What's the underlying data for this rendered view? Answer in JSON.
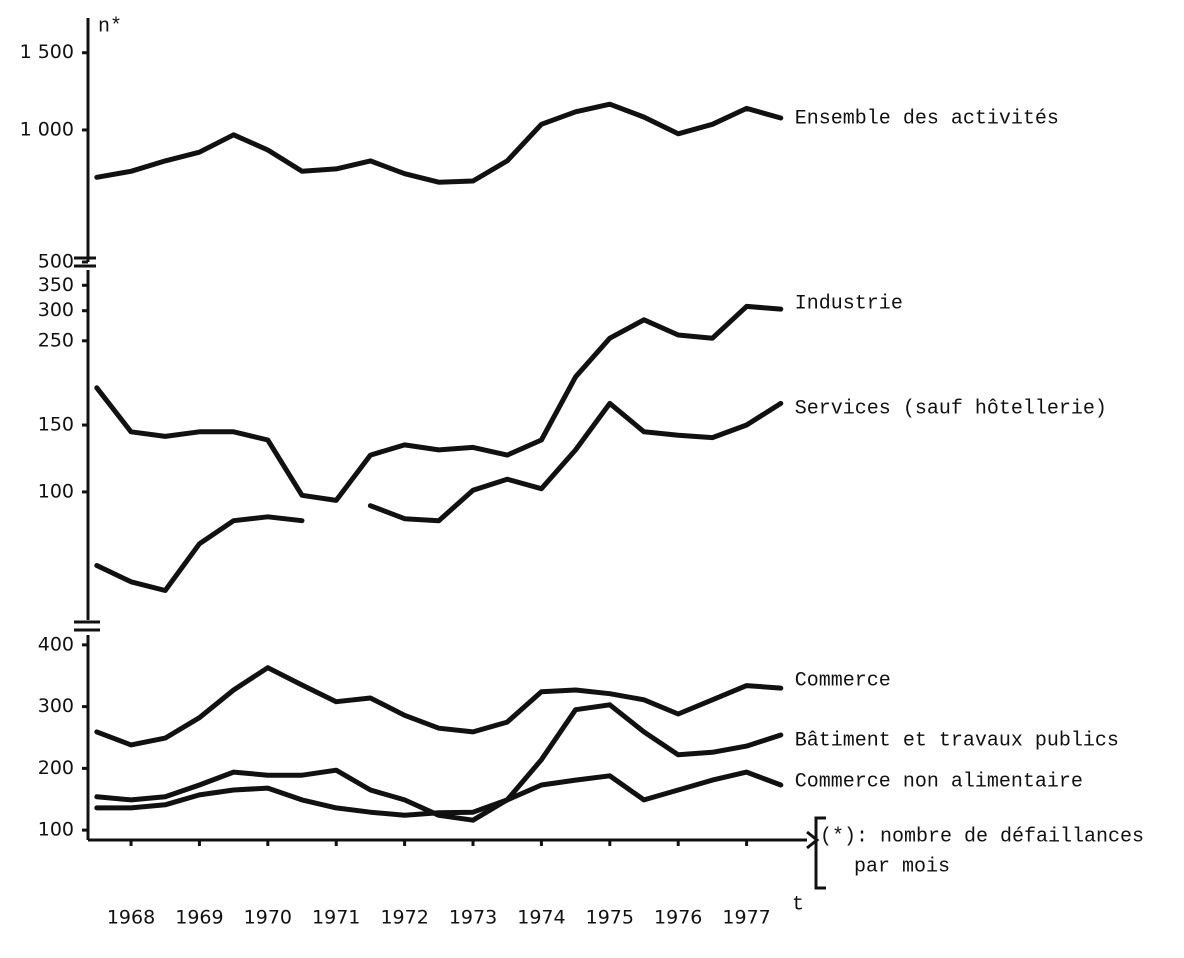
{
  "chart_data": [
    {
      "type": "line",
      "ylabel": "n*",
      "log_scale": true,
      "x": [
        1967.5,
        1968,
        1968.5,
        1969,
        1969.5,
        1970,
        1970.5,
        1971,
        1971.5,
        1972,
        1972.5,
        1973,
        1973.5,
        1974,
        1974.5,
        1975,
        1975.5,
        1976,
        1976.5,
        1977,
        1977.5
      ],
      "xlim": [
        1967.4,
        1978.0
      ],
      "ylim": [
        500,
        1800
      ],
      "yticks": [
        500,
        {
          "value": 1000,
          "label": "1 000"
        },
        {
          "value": 1500,
          "label": "1 500"
        }
      ],
      "series": [
        {
          "name": "Ensemble des activités",
          "color": "#111111",
          "values": [
            780,
            805,
            850,
            890,
            975,
            900,
            805,
            815,
            850,
            795,
            760,
            765,
            850,
            1030,
            1100,
            1145,
            1070,
            980,
            1030,
            1120,
            1065
          ]
        }
      ]
    },
    {
      "type": "line",
      "log_scale": true,
      "x": [
        1967.5,
        1968,
        1968.5,
        1969,
        1969.5,
        1970,
        1970.5,
        1971,
        1971.5,
        1972,
        1972.5,
        1973,
        1973.5,
        1974,
        1974.5,
        1975,
        1975.5,
        1976,
        1976.5,
        1977,
        1977.5
      ],
      "xlim": [
        1967.4,
        1978.0
      ],
      "ylim": [
        46,
        384
      ],
      "yticks": [
        100,
        150,
        250,
        300,
        350
      ],
      "series": [
        {
          "name": "Industrie",
          "color": "#111111",
          "values": [
            188,
            144,
            140,
            144,
            144,
            137,
            98,
            95,
            125,
            133,
            129,
            131,
            125,
            137,
            201,
            254,
            284,
            259,
            254,
            308,
            303
          ]
        },
        {
          "name": "Services (sauf hôtellerie)",
          "color": "#111111",
          "values": [
            64,
            58,
            55,
            73,
            84,
            86,
            84,
            null,
            92,
            85,
            84,
            101,
            108,
            102,
            129,
            171,
            144,
            141,
            139,
            150,
            171
          ]
        }
      ]
    },
    {
      "type": "line",
      "xlabel": "t",
      "annotations": [
        "(*): nombre de défaillances",
        "par mois"
      ],
      "x": [
        1967.5,
        1968,
        1968.5,
        1969,
        1969.5,
        1970,
        1970.5,
        1971,
        1971.5,
        1972,
        1972.5,
        1973,
        1973.5,
        1974,
        1974.5,
        1975,
        1975.5,
        1976,
        1976.5,
        1977,
        1977.5
      ],
      "xlim": [
        1967.4,
        1978.0
      ],
      "ylim": [
        84,
        416
      ],
      "xticks": [
        1968,
        1969,
        1970,
        1971,
        1972,
        1973,
        1974,
        1975,
        1976,
        1977
      ],
      "yticks": [
        100,
        200,
        300,
        400
      ],
      "series": [
        {
          "name": "Commerce",
          "color": "#111111",
          "values": [
            259,
            238,
            249,
            282,
            327,
            363,
            335,
            308,
            314,
            286,
            265,
            259,
            275,
            324,
            327,
            321,
            311,
            288,
            311,
            334,
            330
          ]
        },
        {
          "name": "Bâtiment et travaux publics",
          "color": "#111111",
          "values": [
            154,
            149,
            154,
            173,
            194,
            189,
            189,
            197,
            165,
            149,
            124,
            116,
            149,
            214,
            295,
            303,
            259,
            222,
            226,
            236,
            254
          ]
        },
        {
          "name": "Commerce non alimentaire",
          "color": "#111111",
          "values": [
            136,
            136,
            141,
            157,
            165,
            168,
            149,
            136,
            129,
            124,
            128,
            129,
            149,
            173,
            181,
            188,
            149,
            165,
            181,
            194,
            173
          ]
        }
      ]
    }
  ]
}
